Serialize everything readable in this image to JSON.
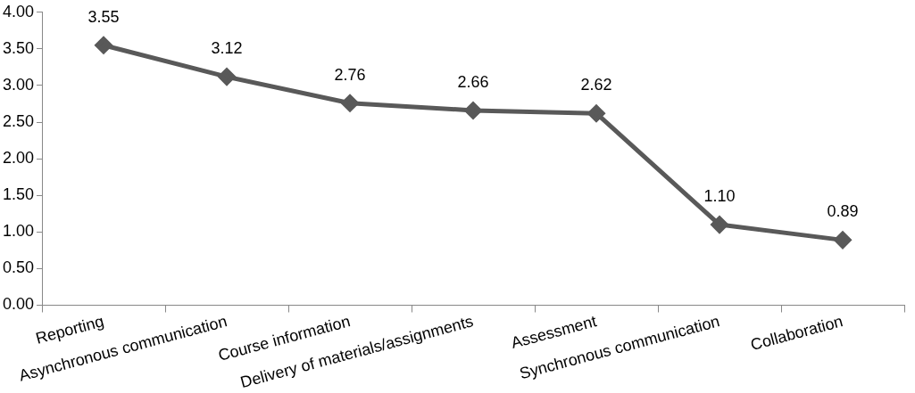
{
  "chart_data": {
    "type": "line",
    "categories": [
      "Reporting",
      "Asynchronous communication",
      "Course information",
      "Delivery of materials/assignments",
      "Assessment",
      "Synchronous communication",
      "Collaboration"
    ],
    "series": [
      {
        "color": "#595959",
        "values": [
          3.55,
          3.12,
          2.76,
          2.66,
          2.62,
          1.1,
          0.89
        ],
        "value_labels": [
          "3.55",
          "3.12",
          "2.76",
          "2.66",
          "2.62",
          "1.10",
          "0.89"
        ]
      }
    ],
    "ylim": [
      0,
      4
    ],
    "yticks": [
      {
        "value": 0,
        "label": "0.00"
      },
      {
        "value": 0.5,
        "label": "0.50"
      },
      {
        "value": 1,
        "label": "1.00"
      },
      {
        "value": 1.5,
        "label": "1.50"
      },
      {
        "value": 2,
        "label": "2.00"
      },
      {
        "value": 2.5,
        "label": "2.50"
      },
      {
        "value": 3,
        "label": "3.00"
      },
      {
        "value": 3.5,
        "label": "3.50"
      },
      {
        "value": 4,
        "label": "4.00"
      }
    ],
    "grid": false,
    "legend": false,
    "marker": "diamond",
    "line_style": "solid"
  }
}
